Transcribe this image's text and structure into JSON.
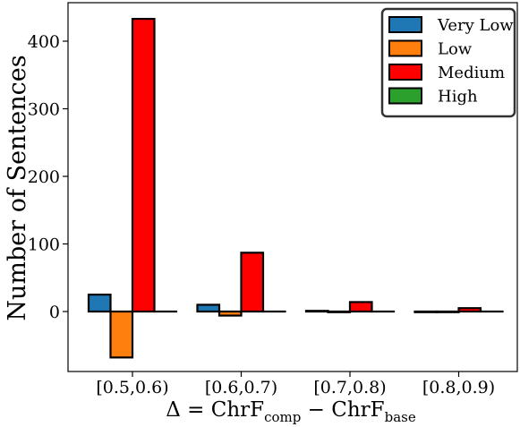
{
  "chart_data": {
    "type": "bar",
    "categories": [
      "[0.5,0.6)",
      "[0.6,0.7)",
      "[0.7,0.8)",
      "[0.8,0.9)"
    ],
    "series": [
      {
        "name": "Very Low",
        "color": "#1f77b4",
        "values": [
          25,
          10,
          1,
          -1
        ]
      },
      {
        "name": "Low",
        "color": "#ff7f0e",
        "values": [
          -68,
          -6,
          -1,
          -1
        ]
      },
      {
        "name": "Medium",
        "color": "#ff0000",
        "values": [
          433,
          87,
          14,
          5
        ]
      },
      {
        "name": "High",
        "color": "#2ca02c",
        "values": [
          0,
          0,
          0,
          0
        ]
      }
    ],
    "ylabel": "Number of Sentences",
    "xlabel": {
      "prefix": "Δ = ChrF",
      "sub1": "comp",
      "mid": " − ChrF",
      "sub2": "base"
    },
    "yticks": [
      0,
      100,
      200,
      300,
      400
    ],
    "ylim": [
      -90,
      460
    ],
    "legend_position": "top-right"
  }
}
